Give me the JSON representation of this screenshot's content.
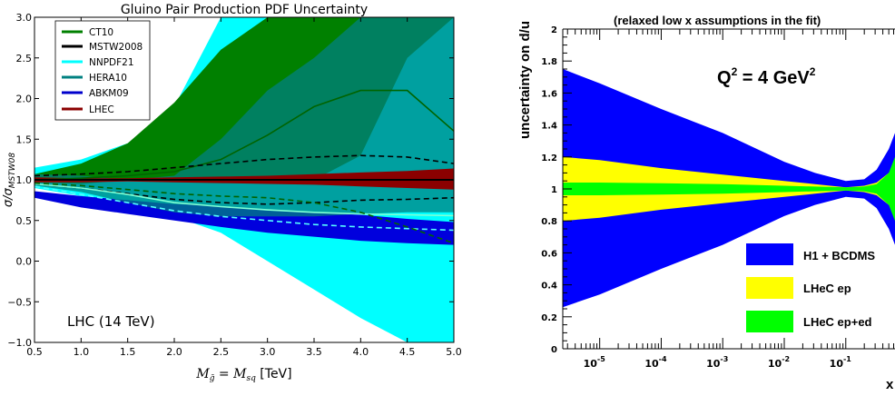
{
  "chart_data": [
    {
      "type": "area",
      "title": "Gluino Pair Production PDF Uncertainty",
      "xlabel": "M_g̃ = M_sq [TeV]",
      "xlabel_parts": {
        "m1": "M",
        "s1": "g̃",
        "eq": " = ",
        "m2": "M",
        "s2": "sq",
        "unit": " [TeV]"
      },
      "ylabel": "σ/σ_MSTW08",
      "ylabel_parts": {
        "sigma": "σ/σ",
        "sub": "MSTW08"
      },
      "xlim": [
        0.5,
        5.0
      ],
      "ylim": [
        -1.0,
        3.0
      ],
      "xticks": [
        "0.5",
        "1.0",
        "1.5",
        "2.0",
        "2.5",
        "3.0",
        "3.5",
        "4.0",
        "4.5",
        "5.0"
      ],
      "yticks": [
        "−1.0",
        "−0.5",
        "0.0",
        "0.5",
        "1.0",
        "1.5",
        "2.0",
        "2.5",
        "3.0"
      ],
      "annotation": "LHC (14 TeV)",
      "legend_position": "top-left",
      "legend": [
        {
          "name": "CT10",
          "color": "#008000"
        },
        {
          "name": "MSTW2008",
          "color": "#000000"
        },
        {
          "name": "NNPDF21",
          "color": "#00ffff"
        },
        {
          "name": "HERA10",
          "color": "#008080"
        },
        {
          "name": "ABKM09",
          "color": "#0000cc"
        },
        {
          "name": "LHEC",
          "color": "#8b0000"
        }
      ],
      "x": [
        0.5,
        1.0,
        1.5,
        2.0,
        2.5,
        3.0,
        3.5,
        4.0,
        4.5,
        5.0
      ],
      "bands": [
        {
          "name": "NNPDF21",
          "color": "#00ffff",
          "upper": [
            1.15,
            1.25,
            1.45,
            1.9,
            3.0,
            3.0,
            3.0,
            3.0,
            3.0,
            3.0
          ],
          "lower": [
            0.9,
            0.8,
            0.68,
            0.55,
            0.35,
            0.0,
            -0.35,
            -0.7,
            -1.0,
            -1.0
          ]
        },
        {
          "name": "ABKM09",
          "color": "#0000dd",
          "upper": [
            0.86,
            0.8,
            0.75,
            0.7,
            0.68,
            0.62,
            0.6,
            0.57,
            0.52,
            0.48
          ],
          "lower": [
            0.78,
            0.66,
            0.58,
            0.5,
            0.42,
            0.35,
            0.3,
            0.25,
            0.22,
            0.2
          ]
        },
        {
          "name": "CT10",
          "color": "#008000",
          "upper": [
            1.07,
            1.2,
            1.45,
            1.95,
            2.6,
            3.0,
            3.0,
            3.0,
            3.0,
            3.0
          ],
          "lower": [
            0.97,
            0.95,
            1.0,
            1.02,
            1.0,
            0.98,
            1.0,
            1.3,
            2.5,
            3.0
          ]
        },
        {
          "name": "HERA10",
          "color": "#008080",
          "upper": [
            1.07,
            1.05,
            1.0,
            1.05,
            1.5,
            2.1,
            2.5,
            3.0,
            3.0,
            3.0
          ],
          "lower": [
            0.93,
            0.85,
            0.72,
            0.6,
            0.55,
            0.55,
            0.55,
            0.58,
            0.6,
            0.6
          ]
        },
        {
          "name": "LHEC",
          "color": "#8b0000",
          "upper": [
            1.03,
            1.02,
            1.02,
            1.03,
            1.04,
            1.05,
            1.07,
            1.09,
            1.11,
            1.14
          ],
          "lower": [
            0.97,
            0.97,
            0.98,
            0.97,
            0.96,
            0.95,
            0.94,
            0.92,
            0.9,
            0.88
          ]
        }
      ],
      "lines": [
        {
          "name": "CT10 central",
          "color": "#006400",
          "dash": false,
          "values": [
            1.0,
            1.02,
            1.05,
            1.1,
            1.25,
            1.55,
            1.9,
            2.1,
            2.1,
            1.6
          ]
        },
        {
          "name": "MSTW2008 central",
          "color": "#000000",
          "dash": false,
          "values": [
            1.0,
            1.0,
            1.0,
            1.0,
            1.0,
            1.0,
            1.0,
            1.0,
            1.0,
            1.0
          ]
        },
        {
          "name": "MSTW2008 upper",
          "color": "#000000",
          "dash": true,
          "values": [
            1.05,
            1.07,
            1.1,
            1.15,
            1.2,
            1.25,
            1.28,
            1.3,
            1.28,
            1.2
          ]
        },
        {
          "name": "MSTW2008 lower",
          "color": "#000000",
          "dash": true,
          "values": [
            0.95,
            0.9,
            0.83,
            0.76,
            0.72,
            0.7,
            0.72,
            0.75,
            0.76,
            0.78
          ]
        },
        {
          "name": "NNPDF21 central",
          "color": "#55ffff",
          "dash": true,
          "values": [
            0.92,
            0.82,
            0.72,
            0.62,
            0.55,
            0.5,
            0.45,
            0.42,
            0.4,
            0.38
          ]
        },
        {
          "name": "HERA10 central",
          "color": "#7fffd4",
          "dash": false,
          "values": [
            0.95,
            0.9,
            0.82,
            0.72,
            0.67,
            0.63,
            0.6,
            0.58,
            0.57,
            0.56
          ]
        },
        {
          "name": "CT10 lower dashed",
          "color": "#006400",
          "dash": true,
          "values": [
            0.96,
            0.93,
            0.88,
            0.83,
            0.8,
            0.78,
            0.72,
            0.6,
            0.42,
            0.22
          ]
        }
      ]
    },
    {
      "type": "area",
      "title": "",
      "ylabel": "uncertainty on d/u",
      "xlabel": "x",
      "inner_title": "(relaxed low x assumptions in the fit)",
      "q2_label": {
        "base": "Q",
        "sup": "2",
        "rest": " = 4 GeV",
        "sup2": "2"
      },
      "x_scale": "log",
      "xlim_log10": [
        -5.6,
        -0.2
      ],
      "ylim": [
        0,
        2
      ],
      "yticks": [
        "0",
        "0.2",
        "0.4",
        "0.6",
        "0.8",
        "1",
        "1.2",
        "1.4",
        "1.6",
        "1.8",
        "2"
      ],
      "xtick_labels": [
        {
          "base": "10",
          "exp": "-5"
        },
        {
          "base": "10",
          "exp": "-4"
        },
        {
          "base": "10",
          "exp": "-3"
        },
        {
          "base": "10",
          "exp": "-2"
        },
        {
          "base": "10",
          "exp": "-1"
        }
      ],
      "legend_position": "bottom-right",
      "legend": [
        {
          "name": "H1 + BCDMS",
          "color": "#0000ff"
        },
        {
          "name": "LHeC ep",
          "color": "#ffff00"
        },
        {
          "name": "LHeC ep+ed",
          "color": "#00ff00"
        }
      ],
      "log10x": [
        -5.6,
        -5.0,
        -4.0,
        -3.0,
        -2.0,
        -1.5,
        -1.0,
        -0.7,
        -0.5,
        -0.3,
        -0.2
      ],
      "bands": [
        {
          "name": "H1 + BCDMS",
          "color": "#0000ff",
          "upper": [
            1.75,
            1.66,
            1.5,
            1.35,
            1.17,
            1.1,
            1.05,
            1.06,
            1.12,
            1.25,
            1.35
          ],
          "lower": [
            0.26,
            0.34,
            0.5,
            0.65,
            0.83,
            0.9,
            0.95,
            0.94,
            0.88,
            0.75,
            0.65
          ]
        },
        {
          "name": "LHeC ep",
          "color": "#ffff00",
          "upper": [
            1.2,
            1.18,
            1.13,
            1.09,
            1.05,
            1.03,
            1.01,
            1.02,
            1.04,
            1.1,
            1.15
          ],
          "lower": [
            0.8,
            0.82,
            0.87,
            0.91,
            0.95,
            0.97,
            0.99,
            0.98,
            0.96,
            0.9,
            0.85
          ]
        },
        {
          "name": "LHeC ep+ed",
          "color": "#00ff00",
          "upper": [
            1.04,
            1.04,
            1.035,
            1.03,
            1.02,
            1.015,
            1.01,
            1.015,
            1.03,
            1.1,
            1.2
          ],
          "lower": [
            0.96,
            0.96,
            0.965,
            0.97,
            0.98,
            0.985,
            0.99,
            0.985,
            0.97,
            0.9,
            0.8
          ]
        }
      ]
    }
  ]
}
